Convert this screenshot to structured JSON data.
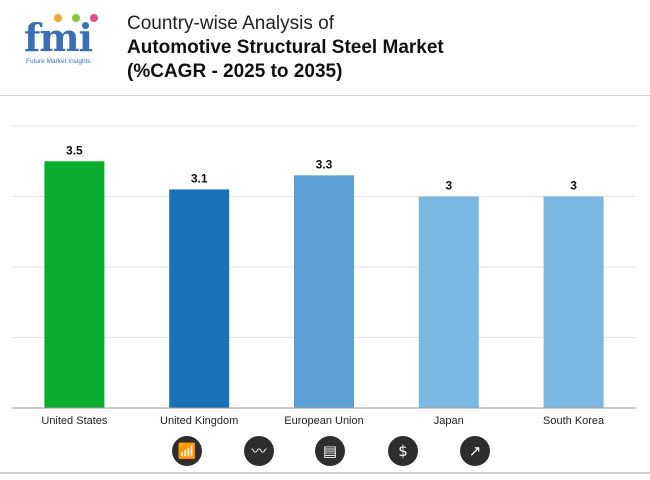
{
  "brand": {
    "logo_text": "fmi",
    "tagline": "Future Market Insights",
    "dot_colors": [
      "#f2a43a",
      "#8cc63f",
      "#e04f8e"
    ]
  },
  "title": {
    "line1": "Country-wise Analysis of",
    "line2": "Automotive Structural Steel Market",
    "line3": "(%CAGR - 2025 to 2035)"
  },
  "chart_data": {
    "type": "bar",
    "title": "Country-wise Analysis of Automotive Structural Steel Market (%CAGR - 2025 to 2035)",
    "categories": [
      "United States",
      "United Kingdom",
      "European Union",
      "Japan",
      "South Korea"
    ],
    "values": [
      3.5,
      3.1,
      3.3,
      3.0,
      3.0
    ],
    "value_labels": [
      "3.5",
      "3.1",
      "3.3",
      "3",
      "3"
    ],
    "bar_colors": [
      "#0aad2e",
      "#1a72b5",
      "#5aa0d6",
      "#7ab8e2",
      "#7ab8e2"
    ],
    "xlabel": "",
    "ylabel": "",
    "ylim": [
      0,
      4
    ],
    "grid": true,
    "legend": "none"
  },
  "footer_icons": [
    {
      "name": "bar-growth-icon",
      "glyph": "📶"
    },
    {
      "name": "analysis-chart-icon",
      "glyph": "〰"
    },
    {
      "name": "document-icon",
      "glyph": "▤"
    },
    {
      "name": "dollar-icon",
      "glyph": "$"
    },
    {
      "name": "trend-chart-icon",
      "glyph": "↗"
    }
  ]
}
